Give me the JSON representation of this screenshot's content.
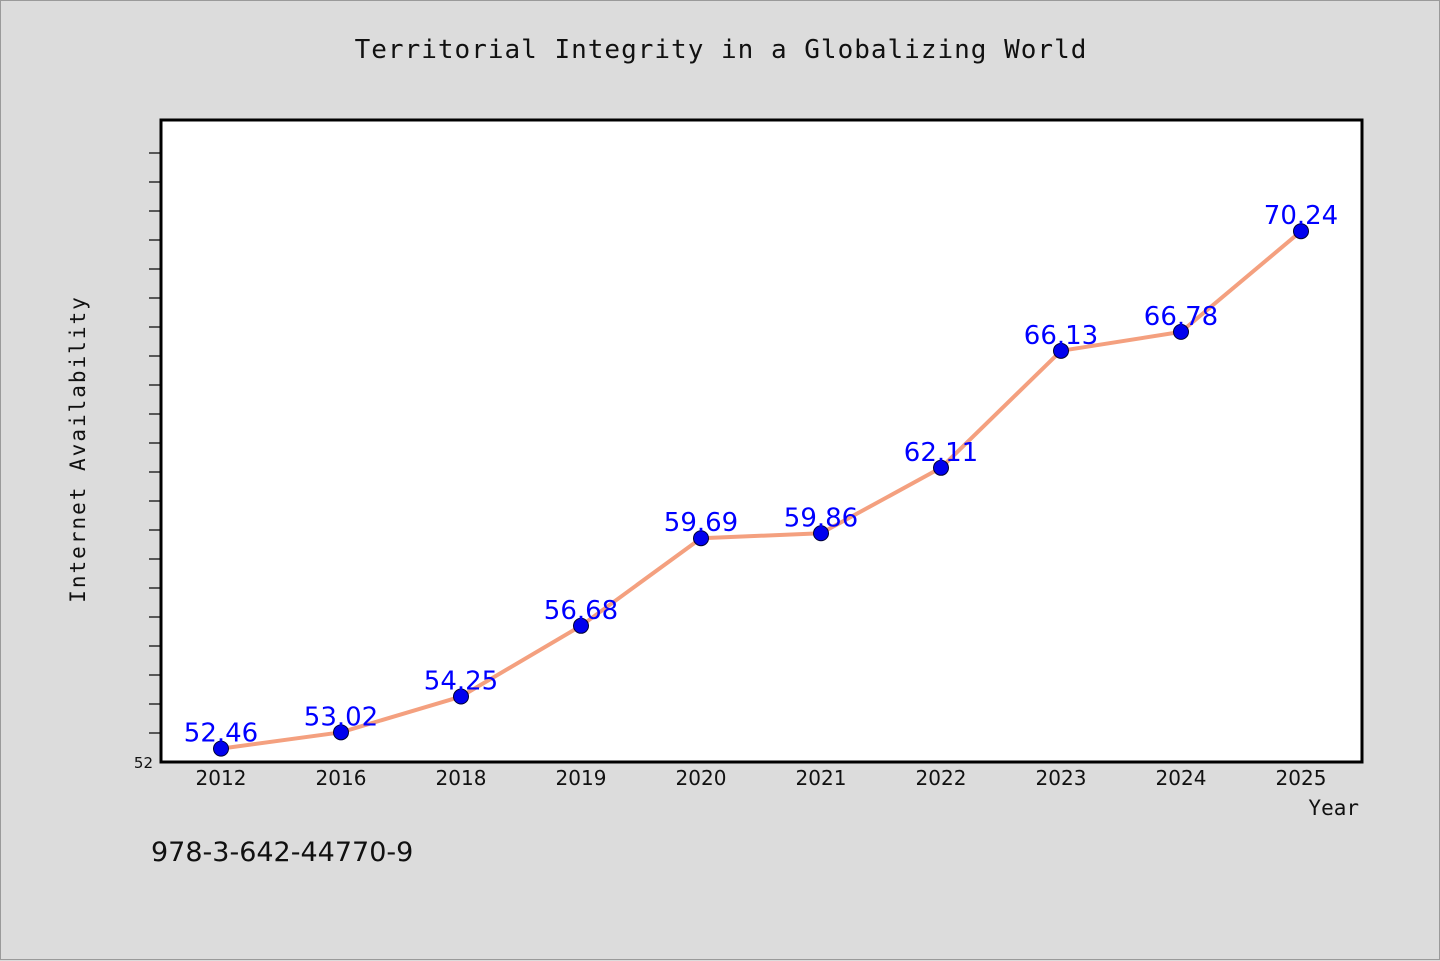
{
  "footer_code": "978-3-642-44770-9",
  "chart_data": {
    "type": "line",
    "title": "Territorial Integrity in a Globalizing World",
    "xlabel": "Year",
    "ylabel": "Internet Availability",
    "categories": [
      "2012",
      "2016",
      "2018",
      "2019",
      "2020",
      "2021",
      "2022",
      "2023",
      "2024",
      "2025"
    ],
    "series": [
      {
        "values": [
          52.46,
          53.02,
          54.25,
          56.68,
          59.69,
          59.86,
          62.11,
          66.13,
          66.78,
          70.24
        ],
        "labels": [
          "52.46",
          "53.02",
          "54.25",
          "56.68",
          "59.69",
          "59.86",
          "62.11",
          "66.13",
          "66.78",
          "70.24"
        ]
      }
    ],
    "ylim": [
      52,
      74
    ],
    "y_tick_labels": [
      "52"
    ],
    "grid": false,
    "colors": {
      "line": "#f4a07f",
      "marker": "#0000ee",
      "label": "#0000ff",
      "plot_bg": "#ffffff",
      "page_bg": "#dcdcdc"
    }
  }
}
